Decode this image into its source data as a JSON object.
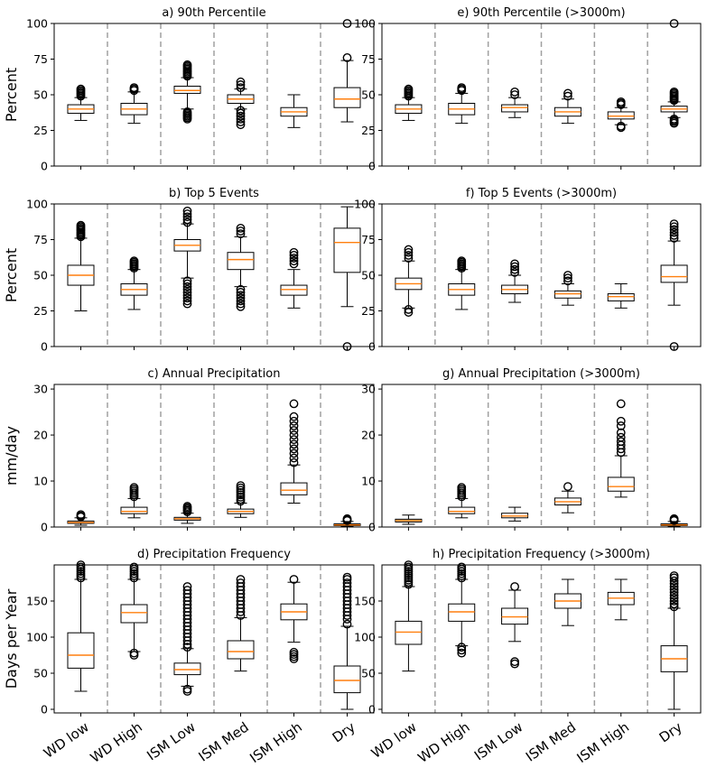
{
  "figure": {
    "type": "box"
  },
  "categories": [
    "WD low",
    "WD High",
    "ISM Low",
    "ISM Med",
    "ISM High",
    "Dry"
  ],
  "colors": {
    "median": "#ff7f0e",
    "box": "#000000",
    "divider": "#a0a0a0"
  },
  "chart_data": [
    {
      "type": "box",
      "panel": "a",
      "title": "a) 90th Percentile",
      "ylabel": "Percent",
      "ylim": [
        0,
        100
      ],
      "yticks": [
        0,
        25,
        50,
        75,
        100
      ],
      "boxes": [
        {
          "category": "WD low",
          "whislo": 32,
          "q1": 37,
          "med": 40,
          "q3": 43,
          "whishi": 48,
          "fliers": [
            49,
            50,
            51,
            52,
            53,
            54
          ]
        },
        {
          "category": "WD High",
          "whislo": 30,
          "q1": 36,
          "med": 40,
          "q3": 44,
          "whishi": 52,
          "fliers": [
            53,
            54,
            55
          ]
        },
        {
          "category": "ISM Low",
          "whislo": 40,
          "q1": 51,
          "med": 53,
          "q3": 56,
          "whishi": 62,
          "fliers": [
            33,
            34,
            35,
            36,
            37,
            38,
            63,
            64,
            65,
            66,
            67,
            68,
            69,
            70,
            71
          ]
        },
        {
          "category": "ISM Med",
          "whislo": 40,
          "q1": 44,
          "med": 47,
          "q3": 50,
          "whishi": 54,
          "fliers": [
            29,
            31,
            33,
            35,
            37,
            39,
            55,
            57,
            59
          ]
        },
        {
          "category": "ISM High",
          "whislo": 27,
          "q1": 35,
          "med": 38,
          "q3": 41,
          "whishi": 50,
          "fliers": []
        },
        {
          "category": "Dry",
          "whislo": 31,
          "q1": 41,
          "med": 47,
          "q3": 55,
          "whishi": 74,
          "fliers": [
            76,
            100
          ]
        }
      ]
    },
    {
      "type": "box",
      "panel": "e",
      "title": "e) 90th Percentile (>3000m)",
      "ylabel": "",
      "ylim": [
        0,
        100
      ],
      "yticks": [
        0,
        25,
        50,
        75,
        100
      ],
      "boxes": [
        {
          "category": "WD low",
          "whislo": 32,
          "q1": 37,
          "med": 40,
          "q3": 43,
          "whishi": 48,
          "fliers": [
            49,
            50,
            51,
            52,
            53,
            54
          ]
        },
        {
          "category": "WD High",
          "whislo": 30,
          "q1": 36,
          "med": 40,
          "q3": 44,
          "whishi": 51,
          "fliers": [
            53,
            54,
            55
          ]
        },
        {
          "category": "ISM Low",
          "whislo": 34,
          "q1": 38,
          "med": 41,
          "q3": 43,
          "whishi": 48,
          "fliers": [
            50,
            52
          ]
        },
        {
          "category": "ISM Med",
          "whislo": 30,
          "q1": 35,
          "med": 38,
          "q3": 41,
          "whishi": 47,
          "fliers": [
            49,
            51
          ]
        },
        {
          "category": "ISM High",
          "whislo": 29,
          "q1": 33,
          "med": 35,
          "q3": 38,
          "whishi": 41,
          "fliers": [
            27,
            28,
            43,
            44,
            45
          ]
        },
        {
          "category": "Dry",
          "whislo": 34,
          "q1": 38,
          "med": 40,
          "q3": 42,
          "whishi": 45,
          "fliers": [
            30,
            31,
            32,
            33,
            46,
            47,
            48,
            49,
            50,
            51,
            52,
            100
          ]
        }
      ]
    },
    {
      "type": "box",
      "panel": "b",
      "title": "b) Top 5 Events",
      "ylabel": "Percent",
      "ylim": [
        0,
        100
      ],
      "yticks": [
        0,
        25,
        50,
        75,
        100
      ],
      "boxes": [
        {
          "category": "WD low",
          "whislo": 25,
          "q1": 43,
          "med": 50,
          "q3": 57,
          "whishi": 76,
          "fliers": [
            77,
            78,
            79,
            80,
            81,
            82,
            83,
            84,
            85
          ]
        },
        {
          "category": "WD High",
          "whislo": 26,
          "q1": 36,
          "med": 40,
          "q3": 44,
          "whishi": 54,
          "fliers": [
            55,
            56,
            57,
            58,
            59,
            60
          ]
        },
        {
          "category": "ISM Low",
          "whislo": 48,
          "q1": 67,
          "med": 71,
          "q3": 75,
          "whishi": 86,
          "fliers": [
            30,
            32,
            34,
            36,
            38,
            40,
            42,
            44,
            46,
            87,
            89,
            91,
            93,
            95
          ]
        },
        {
          "category": "ISM Med",
          "whislo": 42,
          "q1": 54,
          "med": 61,
          "q3": 66,
          "whishi": 77,
          "fliers": [
            28,
            30,
            32,
            34,
            36,
            38,
            40,
            79,
            81,
            83
          ]
        },
        {
          "category": "ISM High",
          "whislo": 27,
          "q1": 36,
          "med": 40,
          "q3": 43,
          "whishi": 54,
          "fliers": [
            58,
            60,
            62,
            64,
            66
          ]
        },
        {
          "category": "Dry",
          "whislo": 28,
          "q1": 52,
          "med": 73,
          "q3": 83,
          "whishi": 98,
          "fliers": [
            0
          ]
        }
      ]
    },
    {
      "type": "box",
      "panel": "f",
      "title": "f) Top 5 Events (>3000m)",
      "ylabel": "",
      "ylim": [
        0,
        100
      ],
      "yticks": [
        0,
        25,
        50,
        75,
        100
      ],
      "boxes": [
        {
          "category": "WD low",
          "whislo": 27,
          "q1": 40,
          "med": 44,
          "q3": 48,
          "whishi": 60,
          "fliers": [
            24,
            26,
            62,
            64,
            66,
            68
          ]
        },
        {
          "category": "WD High",
          "whislo": 26,
          "q1": 36,
          "med": 40,
          "q3": 44,
          "whishi": 54,
          "fliers": [
            55,
            56,
            57,
            58,
            59,
            60
          ]
        },
        {
          "category": "ISM Low",
          "whislo": 31,
          "q1": 37,
          "med": 40,
          "q3": 43,
          "whishi": 50,
          "fliers": [
            52,
            54,
            56,
            58
          ]
        },
        {
          "category": "ISM Med",
          "whislo": 29,
          "q1": 34,
          "med": 37,
          "q3": 39,
          "whishi": 44,
          "fliers": [
            46,
            48,
            50
          ]
        },
        {
          "category": "ISM High",
          "whislo": 27,
          "q1": 32,
          "med": 35,
          "q3": 37,
          "whishi": 44,
          "fliers": []
        },
        {
          "category": "Dry",
          "whislo": 29,
          "q1": 45,
          "med": 49,
          "q3": 57,
          "whishi": 74,
          "fliers": [
            0,
            76,
            78,
            80,
            82,
            84,
            86
          ]
        }
      ]
    },
    {
      "type": "box",
      "panel": "c",
      "title": "c) Annual Precipitation",
      "ylabel": "mm/day",
      "ylim": [
        0,
        31
      ],
      "yticks": [
        0,
        10,
        20,
        30
      ],
      "boxes": [
        {
          "category": "WD low",
          "whislo": 0.4,
          "q1": 0.8,
          "med": 1.0,
          "q3": 1.3,
          "whishi": 2.0,
          "fliers": [
            2.2,
            2.4,
            2.7
          ]
        },
        {
          "category": "WD High",
          "whislo": 2.0,
          "q1": 2.9,
          "med": 3.4,
          "q3": 4.3,
          "whishi": 6.2,
          "fliers": [
            6.6,
            7.0,
            7.4,
            7.8,
            8.2,
            8.6
          ]
        },
        {
          "category": "ISM Low",
          "whislo": 0.8,
          "q1": 1.5,
          "med": 1.8,
          "q3": 2.1,
          "whishi": 3.0,
          "fliers": [
            3.3,
            3.6,
            3.9,
            4.2,
            4.5
          ]
        },
        {
          "category": "ISM Med",
          "whislo": 2.1,
          "q1": 2.9,
          "med": 3.4,
          "q3": 3.9,
          "whishi": 5.2,
          "fliers": [
            5.6,
            6.0,
            6.5,
            7.0,
            7.5,
            8.0,
            8.5,
            9.0
          ]
        },
        {
          "category": "ISM High",
          "whislo": 5.2,
          "q1": 7.0,
          "med": 8.0,
          "q3": 9.6,
          "whishi": 13.5,
          "fliers": [
            14,
            15,
            16,
            17,
            18,
            19,
            20,
            21,
            22,
            23,
            24,
            26.8
          ]
        },
        {
          "category": "Dry",
          "whislo": 0.1,
          "q1": 0.3,
          "med": 0.45,
          "q3": 0.7,
          "whishi": 1.2,
          "fliers": [
            1.4,
            1.6,
            1.8
          ]
        }
      ]
    },
    {
      "type": "box",
      "panel": "g",
      "title": "g) Annual Precipitation (>3000m)",
      "ylabel": "",
      "ylim": [
        0,
        31
      ],
      "yticks": [
        0,
        10,
        20,
        30
      ],
      "boxes": [
        {
          "category": "WD low",
          "whislo": 0.6,
          "q1": 1.1,
          "med": 1.4,
          "q3": 1.7,
          "whishi": 2.6,
          "fliers": []
        },
        {
          "category": "WD High",
          "whislo": 2.0,
          "q1": 2.9,
          "med": 3.4,
          "q3": 4.3,
          "whishi": 6.2,
          "fliers": [
            6.6,
            7.0,
            7.4,
            7.8,
            8.2,
            8.6
          ]
        },
        {
          "category": "ISM Low",
          "whislo": 1.3,
          "q1": 2.0,
          "med": 2.4,
          "q3": 3.0,
          "whishi": 4.3,
          "fliers": []
        },
        {
          "category": "ISM Med",
          "whislo": 3.1,
          "q1": 4.8,
          "med": 5.5,
          "q3": 6.3,
          "whishi": 7.8,
          "fliers": [
            8.8
          ]
        },
        {
          "category": "ISM High",
          "whislo": 6.5,
          "q1": 7.8,
          "med": 8.8,
          "q3": 10.8,
          "whishi": 15.5,
          "fliers": [
            16.2,
            17,
            17.8,
            18.6,
            19.5,
            20.5,
            22,
            23,
            26.8
          ]
        },
        {
          "category": "Dry",
          "whislo": 0.1,
          "q1": 0.3,
          "med": 0.45,
          "q3": 0.7,
          "whishi": 1.2,
          "fliers": [
            1.4,
            1.6,
            1.8
          ]
        }
      ]
    },
    {
      "type": "box",
      "panel": "d",
      "title": "d) Precipitation Frequency",
      "ylabel": "Days per Year",
      "ylim": [
        -5,
        200
      ],
      "yticks": [
        0,
        50,
        100,
        150
      ],
      "boxes": [
        {
          "category": "WD low",
          "whislo": 25,
          "q1": 57,
          "med": 75,
          "q3": 106,
          "whishi": 180,
          "fliers": [
            182,
            185,
            188,
            191,
            194,
            197,
            200
          ]
        },
        {
          "category": "WD High",
          "whislo": 80,
          "q1": 120,
          "med": 134,
          "q3": 145,
          "whishi": 180,
          "fliers": [
            75,
            78,
            182,
            185,
            188,
            191,
            194,
            197
          ]
        },
        {
          "category": "ISM Low",
          "whislo": 32,
          "q1": 48,
          "med": 55,
          "q3": 64,
          "whishi": 84,
          "fliers": [
            25,
            28,
            86,
            90,
            95,
            100,
            105,
            110,
            115,
            120,
            125,
            130,
            135,
            140,
            145,
            150,
            155,
            160,
            165,
            170
          ]
        },
        {
          "category": "ISM Med",
          "whislo": 53,
          "q1": 70,
          "med": 80,
          "q3": 95,
          "whishi": 127,
          "fliers": [
            130,
            135,
            140,
            145,
            150,
            155,
            160,
            165,
            170,
            175,
            180
          ]
        },
        {
          "category": "ISM High",
          "whislo": 93,
          "q1": 124,
          "med": 135,
          "q3": 146,
          "whishi": 176,
          "fliers": [
            70,
            73,
            76,
            79,
            180
          ]
        },
        {
          "category": "Dry",
          "whislo": 0,
          "q1": 23,
          "med": 40,
          "q3": 60,
          "whishi": 115,
          "fliers": [
            118,
            125,
            130,
            135,
            140,
            145,
            150,
            155,
            160,
            165,
            170,
            175,
            180,
            183
          ]
        }
      ]
    },
    {
      "type": "box",
      "panel": "h",
      "title": "h) Precipitation Frequency (>3000m)",
      "ylabel": "",
      "ylim": [
        -5,
        200
      ],
      "yticks": [
        0,
        50,
        100,
        150
      ],
      "boxes": [
        {
          "category": "WD low",
          "whislo": 53,
          "q1": 90,
          "med": 107,
          "q3": 122,
          "whishi": 170,
          "fliers": [
            173,
            176,
            179,
            182,
            185,
            188,
            191,
            194,
            197,
            200
          ]
        },
        {
          "category": "WD High",
          "whislo": 88,
          "q1": 122,
          "med": 135,
          "q3": 146,
          "whishi": 180,
          "fliers": [
            78,
            82,
            86,
            182,
            185,
            188,
            191,
            194,
            197
          ]
        },
        {
          "category": "ISM Low",
          "whislo": 94,
          "q1": 118,
          "med": 128,
          "q3": 140,
          "whishi": 165,
          "fliers": [
            63,
            66,
            170
          ]
        },
        {
          "category": "ISM Med",
          "whislo": 116,
          "q1": 140,
          "med": 150,
          "q3": 160,
          "whishi": 180,
          "fliers": []
        },
        {
          "category": "ISM High",
          "whislo": 124,
          "q1": 145,
          "med": 154,
          "q3": 162,
          "whishi": 180,
          "fliers": []
        },
        {
          "category": "Dry",
          "whislo": 0,
          "q1": 52,
          "med": 70,
          "q3": 88,
          "whishi": 140,
          "fliers": [
            142,
            146,
            150,
            154,
            158,
            162,
            166,
            170,
            174,
            178,
            182,
            185
          ]
        }
      ]
    }
  ]
}
